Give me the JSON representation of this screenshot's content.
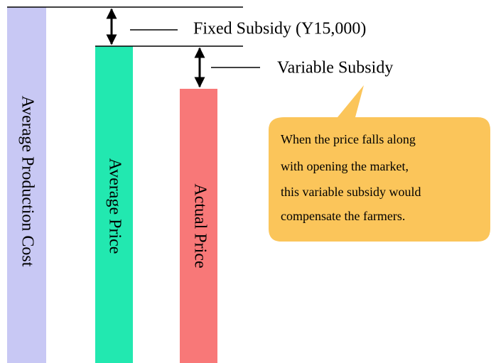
{
  "bars": [
    {
      "label": "Average Production Cost"
    },
    {
      "label": "Average Price"
    },
    {
      "label": "Actual Price"
    }
  ],
  "annotations": [
    {
      "label": "Fixed Subsidy (Y15,000)"
    },
    {
      "label": "Variable Subsidy"
    }
  ],
  "callout": {
    "lines": [
      "When the price falls along",
      "with opening the market,",
      "this variable subsidy would",
      "compensate the farmers."
    ]
  }
}
